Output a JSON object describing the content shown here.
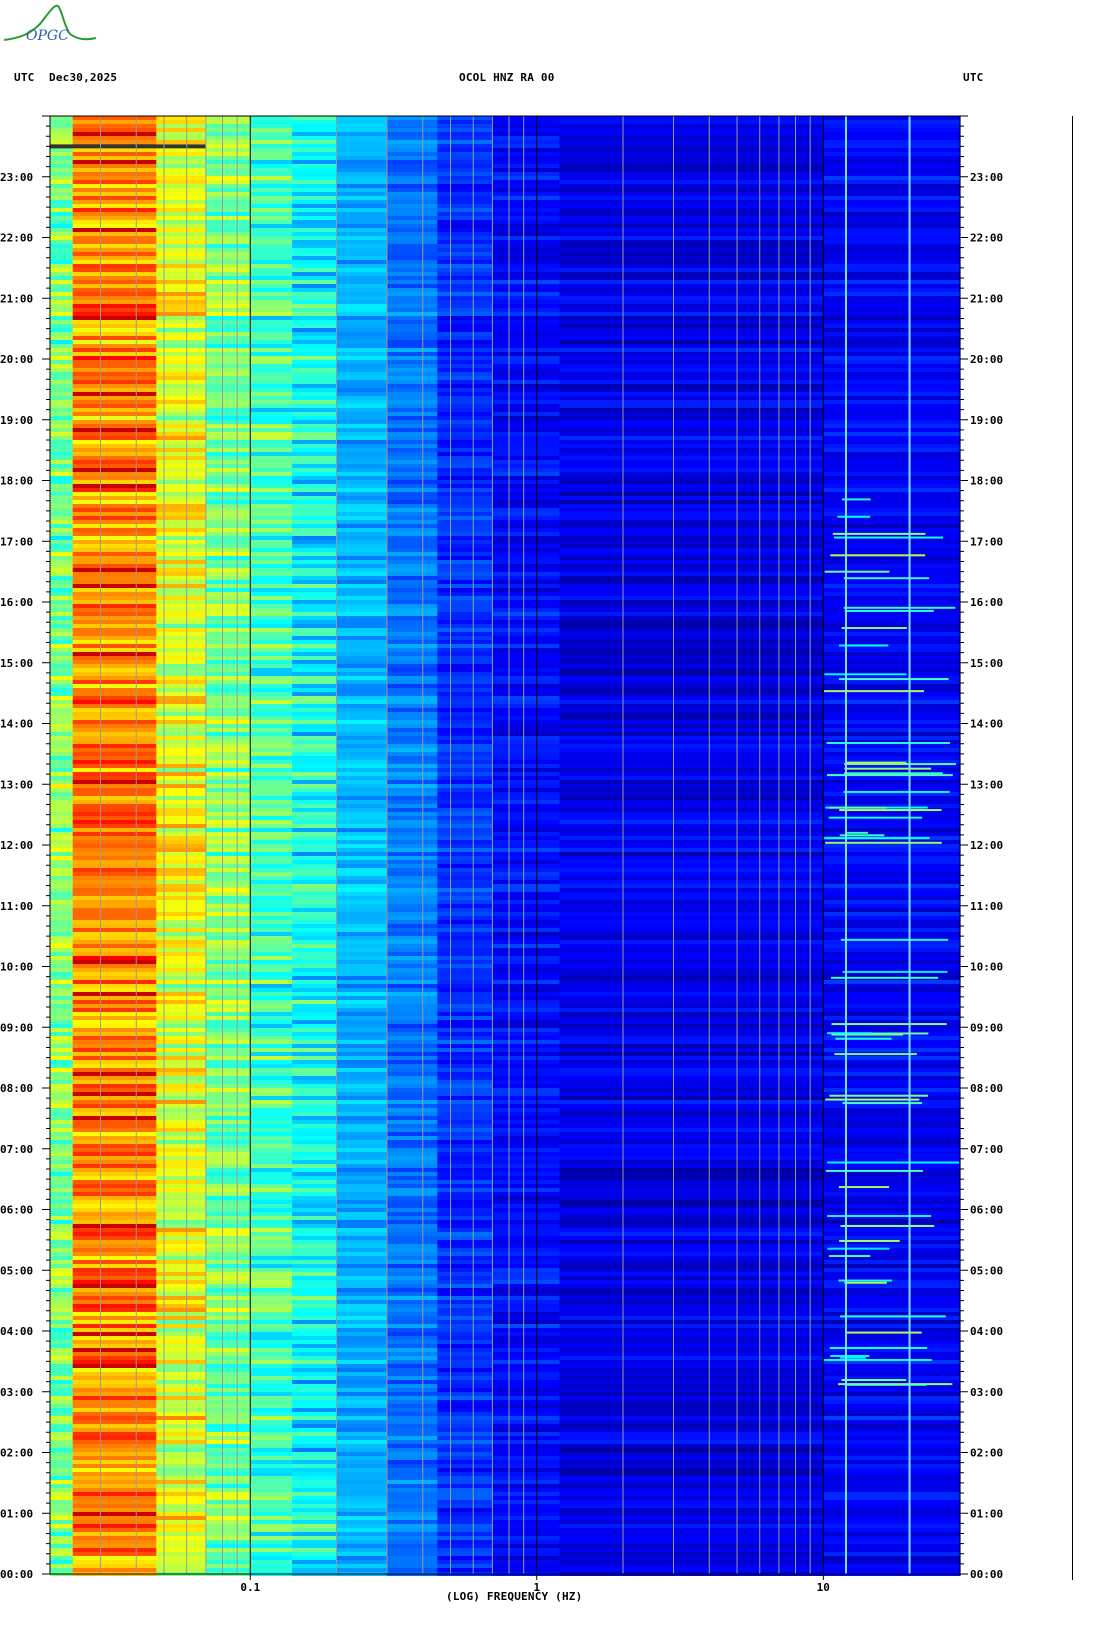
{
  "header": {
    "logo_text": "OPGC",
    "left_label": "UTC",
    "date": "Dec30,2025",
    "station": "OCOL HNZ RA 00",
    "right_label": "UTC"
  },
  "colors": {
    "background_low": "#0000e6",
    "mid": "#00d8ff",
    "high_yellow": "#f0f000",
    "peak_red": "#e60000",
    "logo": "#2e9b2e"
  },
  "chart_data": {
    "type": "heatmap",
    "title": "OCOL HNZ RA 00",
    "xlabel": "(LOG) FREQUENCY (HZ)",
    "x_scale": "log",
    "xlim": [
      0.02,
      30
    ],
    "x_ticks": [
      0.1,
      1,
      10
    ],
    "x_tick_labels": [
      "0.1",
      "1",
      "10"
    ],
    "ylabel": "UTC",
    "ylim_hours": [
      0,
      24
    ],
    "y_tick_labels": [
      "00:00",
      "01:00",
      "02:00",
      "03:00",
      "04:00",
      "05:00",
      "06:00",
      "07:00",
      "08:00",
      "09:00",
      "10:00",
      "11:00",
      "12:00",
      "13:00",
      "14:00",
      "15:00",
      "16:00",
      "17:00",
      "18:00",
      "19:00",
      "20:00",
      "21:00",
      "22:00",
      "23:00"
    ],
    "data_gap_hour": 23.5,
    "grid": true
  }
}
